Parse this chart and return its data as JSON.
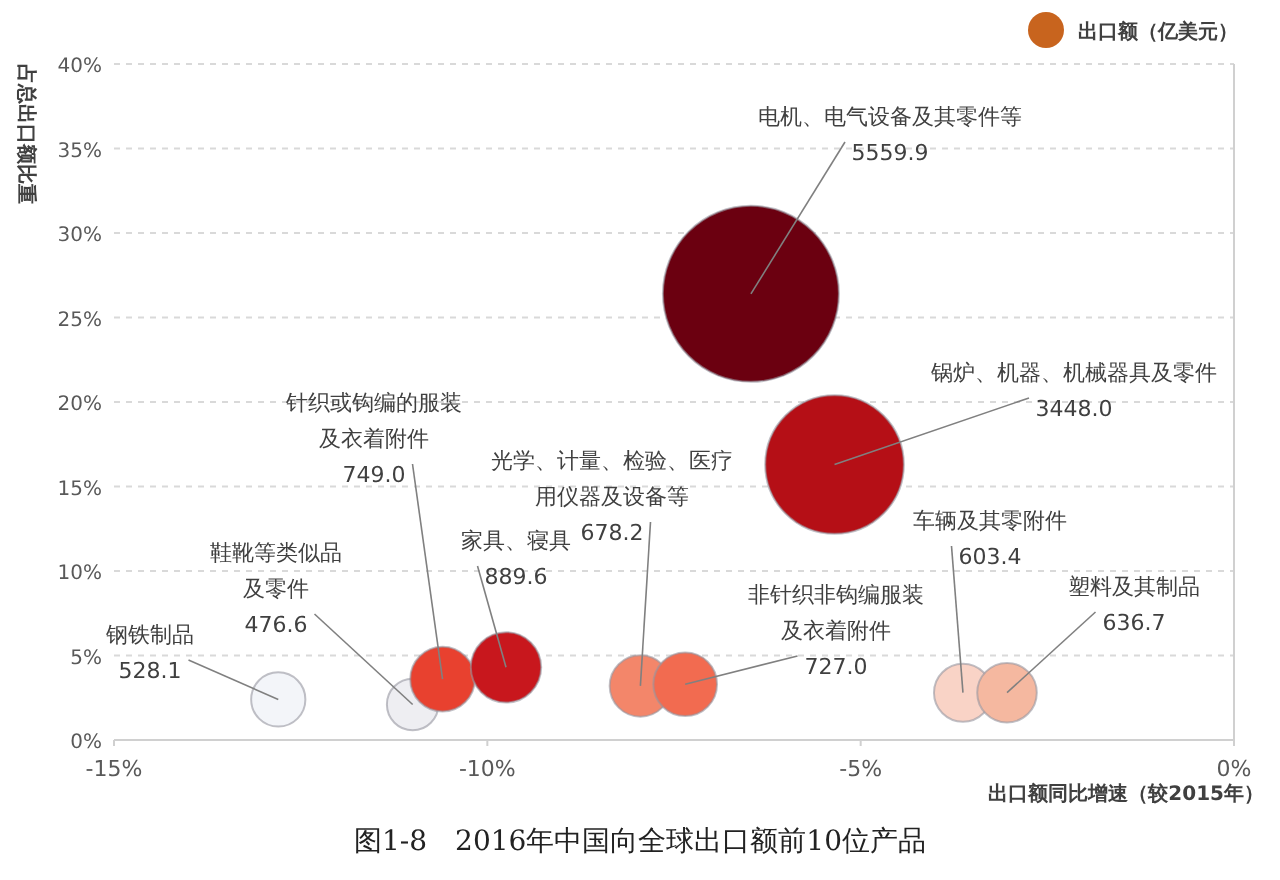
{
  "chart_data": {
    "type": "bubble",
    "title": "图1-8　2016年中国向全球出口额前10位产品",
    "xlabel": "出口额同比增速（较2015年）",
    "ylabel": "占总出口额比重",
    "xlim": [
      -15,
      0
    ],
    "xticks": [
      {
        "value": -15,
        "label": "-15%"
      },
      {
        "value": -10,
        "label": "-10%"
      },
      {
        "value": -5,
        "label": "-5%"
      },
      {
        "value": 0,
        "label": "0%"
      }
    ],
    "ylim": [
      0,
      40
    ],
    "yticks": [
      {
        "value": 0,
        "label": "0%"
      },
      {
        "value": 5,
        "label": "5%"
      },
      {
        "value": 10,
        "label": "10%"
      },
      {
        "value": 15,
        "label": "15%"
      },
      {
        "value": 20,
        "label": "20%"
      },
      {
        "value": 25,
        "label": "25%"
      },
      {
        "value": 30,
        "label": "30%"
      },
      {
        "value": 35,
        "label": "35%"
      },
      {
        "value": 40,
        "label": "40%"
      }
    ],
    "grid": "y",
    "legend": "top right",
    "series": [
      {
        "name": "出口额（亿美元）",
        "color": "#c8641e",
        "x": [
          -12.8,
          -11.0,
          -10.6,
          -9.75,
          -7.95,
          -7.35,
          -6.47,
          -5.35,
          -3.63,
          -3.04
        ],
        "values": [
          2.4,
          2.1,
          3.6,
          4.3,
          3.2,
          3.3,
          26.4,
          16.3,
          2.8,
          2.8
        ],
        "sizes": [
          528.1,
          476.6,
          749.0,
          889.6,
          678.2,
          727.0,
          5559.9,
          3448.0,
          603.4,
          636.7
        ],
        "value_labels": [
          "528.1",
          "476.6",
          "749.0",
          "889.6",
          "678.2",
          "727.0",
          "5559.9",
          "3448.0",
          "603.4",
          "636.7"
        ],
        "colors": [
          "#f3f5f9",
          "#eeeef2",
          "#e8412f",
          "#c8171d",
          "#f3866a",
          "#f26b50",
          "#6b0010",
          "#b50f16",
          "#f9d3c6",
          "#f5b8a0"
        ]
      }
    ],
    "annotations": [
      {
        "text": "钢铁制品",
        "x": -12.8,
        "y": 2.4
      },
      {
        "text": "鞋靴等类似品及零件",
        "x": -11.0,
        "y": 2.1
      },
      {
        "text": "针织或钩编的服装及衣着附件",
        "x": -10.6,
        "y": 3.6
      },
      {
        "text": "家具、寝具",
        "x": -9.75,
        "y": 4.3
      },
      {
        "text": "光学、计量、检验、医疗用仪器及设备等",
        "x": -7.95,
        "y": 3.2
      },
      {
        "text": "非针织非钩编服装及衣着附件",
        "x": -7.35,
        "y": 3.3
      },
      {
        "text": "电机、电气设备及其零件等",
        "x": -6.47,
        "y": 26.4
      },
      {
        "text": "锅炉、机器、机械器具及零件",
        "x": -5.35,
        "y": 16.3
      },
      {
        "text": "车辆及其零附件",
        "x": -3.63,
        "y": 2.8
      },
      {
        "text": "塑料及其制品",
        "x": -3.04,
        "y": 2.8
      }
    ]
  }
}
